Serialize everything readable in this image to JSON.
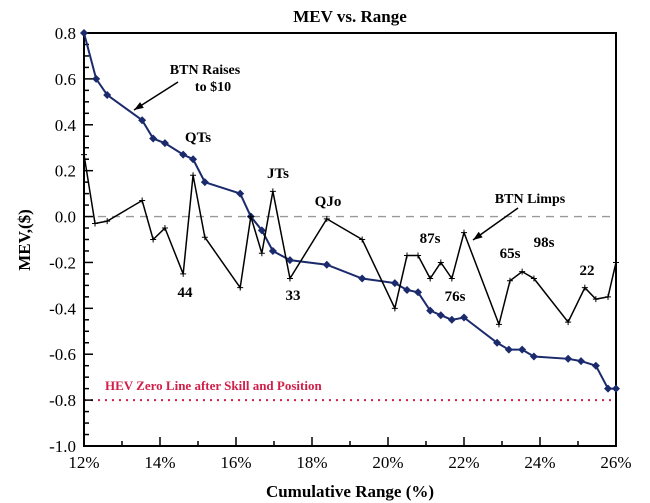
{
  "chart_data": {
    "type": "line",
    "title": "MEV vs. Range",
    "xlabel": "Cumulative Range (%)",
    "ylabel": "MEV,($)",
    "xlim": [
      12,
      26
    ],
    "ylim": [
      -1.0,
      0.8
    ],
    "x_ticks": [
      "12%",
      "14%",
      "16%",
      "18%",
      "20%",
      "22%",
      "24%",
      "26%"
    ],
    "x_tick_values": [
      12,
      14,
      16,
      18,
      20,
      22,
      24,
      26
    ],
    "y_ticks": [
      "0.8",
      "0.6",
      "0.4",
      "0.2",
      "0.0",
      "-0.2",
      "-0.4",
      "-0.6",
      "-0.8",
      "-1.0"
    ],
    "y_tick_values": [
      0.8,
      0.6,
      0.4,
      0.2,
      0.0,
      -0.2,
      -0.4,
      -0.6,
      -0.8,
      -1.0
    ],
    "grid": false,
    "series": [
      {
        "name": "BTN Raises to $10",
        "color": "#1a2a6c",
        "marker": "diamond",
        "x": [
          12.0,
          12.32,
          12.61,
          13.53,
          13.82,
          14.13,
          14.61,
          14.87,
          15.18,
          16.11,
          16.39,
          16.68,
          16.97,
          17.42,
          18.39,
          19.32,
          20.18,
          20.5,
          20.79,
          21.11,
          21.39,
          21.68,
          22.0,
          22.87,
          23.18,
          23.53,
          23.84,
          24.74,
          25.08,
          25.47,
          25.79,
          26.0
        ],
        "y": [
          0.8,
          0.6,
          0.53,
          0.42,
          0.34,
          0.32,
          0.27,
          0.25,
          0.15,
          0.1,
          0.0,
          -0.06,
          -0.15,
          -0.19,
          -0.21,
          -0.27,
          -0.29,
          -0.32,
          -0.33,
          -0.41,
          -0.43,
          -0.45,
          -0.44,
          -0.55,
          -0.58,
          -0.58,
          -0.61,
          -0.62,
          -0.63,
          -0.65,
          -0.75,
          -0.75
        ]
      },
      {
        "name": "BTN Limps",
        "color": "#000000",
        "marker": "plus",
        "x": [
          12.0,
          12.29,
          12.61,
          13.53,
          13.82,
          14.13,
          14.61,
          14.87,
          15.18,
          16.11,
          16.39,
          16.68,
          16.97,
          17.42,
          18.39,
          19.32,
          20.18,
          20.5,
          20.79,
          21.11,
          21.39,
          21.68,
          22.0,
          22.92,
          23.21,
          23.53,
          23.84,
          24.74,
          25.18,
          25.47,
          25.79,
          26.0
        ],
        "y": [
          0.27,
          -0.03,
          -0.02,
          0.07,
          -0.1,
          -0.05,
          -0.25,
          0.18,
          -0.09,
          -0.31,
          0.0,
          -0.16,
          0.11,
          -0.27,
          -0.01,
          -0.1,
          -0.4,
          -0.17,
          -0.17,
          -0.27,
          -0.2,
          -0.27,
          -0.07,
          -0.47,
          -0.28,
          -0.24,
          -0.27,
          -0.46,
          -0.31,
          -0.36,
          -0.35,
          -0.2
        ]
      }
    ],
    "reference_lines": [
      {
        "y": 0.0,
        "style": "dashed",
        "color": "#999999"
      },
      {
        "y": -0.8,
        "style": "dotted",
        "color": "#d0204a",
        "label": "HEV Zero Line after Skill and Position"
      }
    ],
    "annotations": [
      "BTN Raises",
      "to $10",
      "BTN Limps",
      "QTs",
      "JTs",
      "QJo",
      "87s",
      "65s",
      "98s",
      "22",
      "44",
      "33",
      "76s"
    ]
  }
}
